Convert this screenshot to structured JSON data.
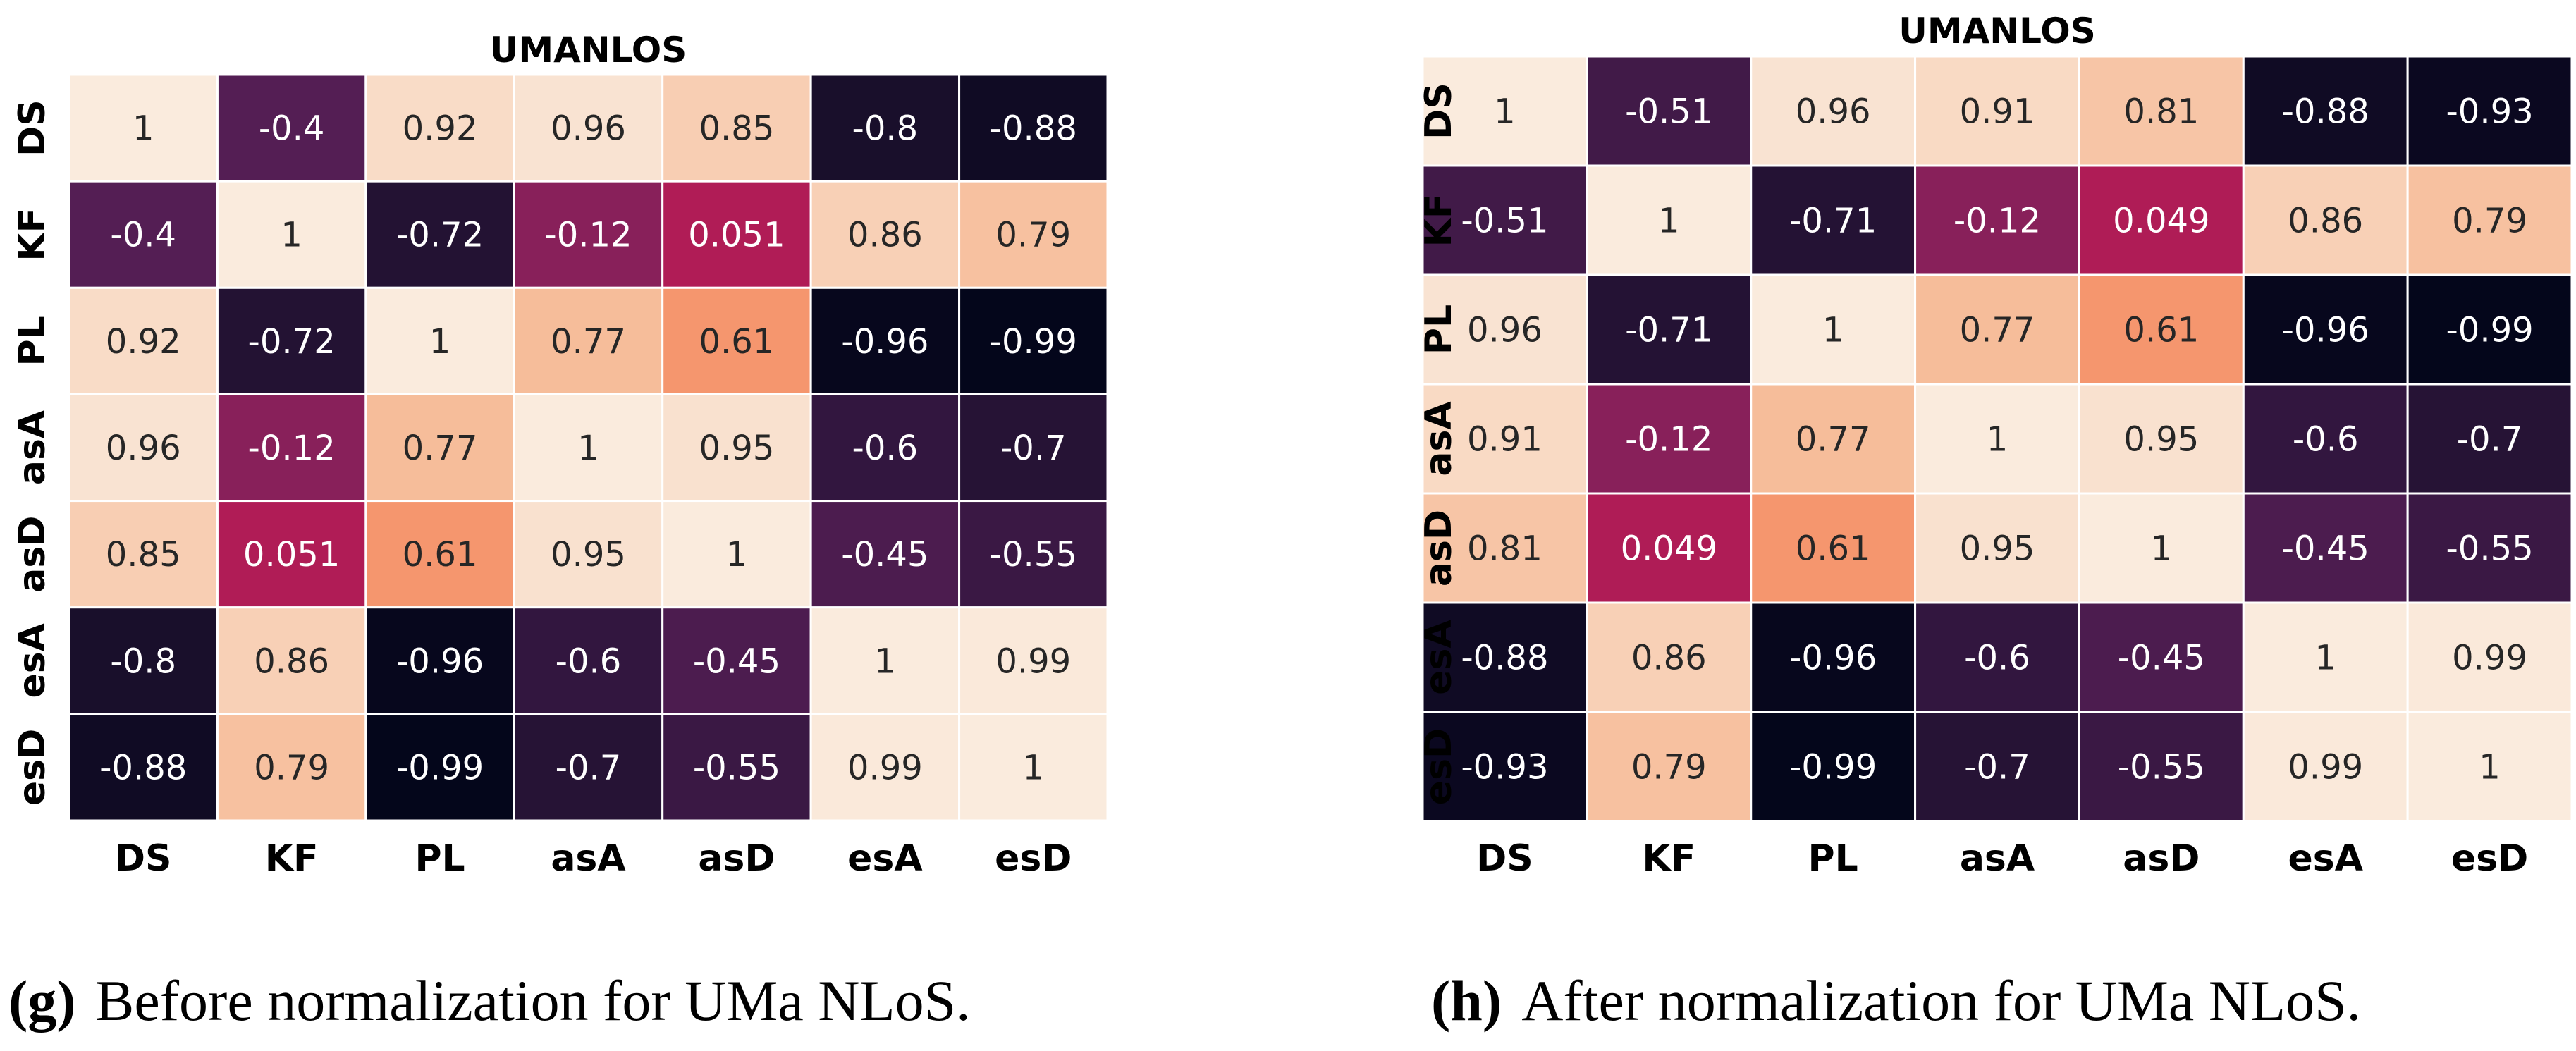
{
  "chart_data": [
    {
      "type": "heatmap",
      "title": "UMANLOS",
      "subfigure_label": "(g)",
      "caption": "Before normalization for UMa NLoS.",
      "row_labels": [
        "DS",
        "KF",
        "PL",
        "asA",
        "asD",
        "esA",
        "esD"
      ],
      "col_labels": [
        "DS",
        "KF",
        "PL",
        "asA",
        "asD",
        "esA",
        "esD"
      ],
      "value_labels": [
        [
          "1",
          "-0.4",
          "0.92",
          "0.96",
          "0.85",
          "-0.8",
          "-0.88"
        ],
        [
          "-0.4",
          "1",
          "-0.72",
          "-0.12",
          "0.051",
          "0.86",
          "0.79"
        ],
        [
          "0.92",
          "-0.72",
          "1",
          "0.77",
          "0.61",
          "-0.96",
          "-0.99"
        ],
        [
          "0.96",
          "-0.12",
          "0.77",
          "1",
          "0.95",
          "-0.6",
          "-0.7"
        ],
        [
          "0.85",
          "0.051",
          "0.61",
          "0.95",
          "1",
          "-0.45",
          "-0.55"
        ],
        [
          "-0.8",
          "0.86",
          "-0.96",
          "-0.6",
          "-0.45",
          "1",
          "0.99"
        ],
        [
          "-0.88",
          "0.79",
          "-0.99",
          "-0.7",
          "-0.55",
          "0.99",
          "1"
        ]
      ],
      "vmin": -1,
      "vmax": 1,
      "colormap": "rocket",
      "colorbar": false
    },
    {
      "type": "heatmap",
      "title": "UMANLOS",
      "subfigure_label": "(h)",
      "caption": "After normalization for UMa NLoS.",
      "row_labels": [
        "DS",
        "KF",
        "PL",
        "asA",
        "asD",
        "esA",
        "esD"
      ],
      "col_labels": [
        "DS",
        "KF",
        "PL",
        "asA",
        "asD",
        "esA",
        "esD"
      ],
      "value_labels": [
        [
          "1",
          "-0.51",
          "0.96",
          "0.91",
          "0.81",
          "-0.88",
          "-0.93"
        ],
        [
          "-0.51",
          "1",
          "-0.71",
          "-0.12",
          "0.049",
          "0.86",
          "0.79"
        ],
        [
          "0.96",
          "-0.71",
          "1",
          "0.77",
          "0.61",
          "-0.96",
          "-0.99"
        ],
        [
          "0.91",
          "-0.12",
          "0.77",
          "1",
          "0.95",
          "-0.6",
          "-0.7"
        ],
        [
          "0.81",
          "0.049",
          "0.61",
          "0.95",
          "1",
          "-0.45",
          "-0.55"
        ],
        [
          "-0.88",
          "0.86",
          "-0.96",
          "-0.6",
          "-0.45",
          "1",
          "0.99"
        ],
        [
          "-0.93",
          "0.79",
          "-0.99",
          "-0.7",
          "-0.55",
          "0.99",
          "1"
        ]
      ],
      "vmin": -1,
      "vmax": 1,
      "colormap": "rocket",
      "colorbar": false
    }
  ]
}
